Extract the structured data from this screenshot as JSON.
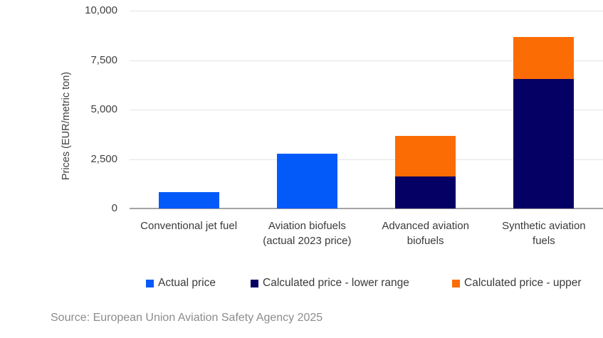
{
  "chart_data": {
    "type": "bar",
    "stacked": true,
    "title": "",
    "xlabel": "",
    "ylabel": "Prices (EUR/metric ton)",
    "ylim": [
      0,
      10000
    ],
    "grid": true,
    "legend_position": "bottom",
    "yticks": [
      {
        "value": 0,
        "label": "0"
      },
      {
        "value": 2500,
        "label": "2,500"
      },
      {
        "value": 5000,
        "label": "5,000"
      },
      {
        "value": 7500,
        "label": "7,500"
      },
      {
        "value": 10000,
        "label": "10,000"
      }
    ],
    "categories": [
      {
        "lines": [
          "Conventional jet fuel"
        ]
      },
      {
        "lines": [
          "Aviation biofuels",
          "(actual 2023 price)"
        ]
      },
      {
        "lines": [
          "Advanced aviation",
          "biofuels"
        ]
      },
      {
        "lines": [
          "Synthetic aviation",
          "fuels"
        ]
      }
    ],
    "series": [
      {
        "name": "Actual price",
        "color": "#0459F9",
        "values": [
          820,
          2760,
          0,
          0
        ]
      },
      {
        "name": "Calculated price - lower range",
        "color": "#050064",
        "values": [
          0,
          0,
          1620,
          6560
        ]
      },
      {
        "name": "Calculated price - upper",
        "color": "#FB6C04",
        "values": [
          0,
          0,
          2060,
          2120
        ]
      }
    ],
    "legend": [
      {
        "label": "Actual price",
        "color": "#0459F9"
      },
      {
        "label": "Calculated price - lower range",
        "color": "#050064"
      },
      {
        "label": "Calculated price - upper",
        "color": "#FB6C04"
      }
    ]
  },
  "source": "Source: European Union Aviation Safety Agency 2025",
  "colors": {
    "actual_price": "#0459F9",
    "lower_range": "#050064",
    "upper_range": "#FB6C04",
    "gridline": "#e4e4e4",
    "axis_line": "#a3a3a3",
    "tick_text": "#404040",
    "source_text": "#8c8c8c"
  }
}
